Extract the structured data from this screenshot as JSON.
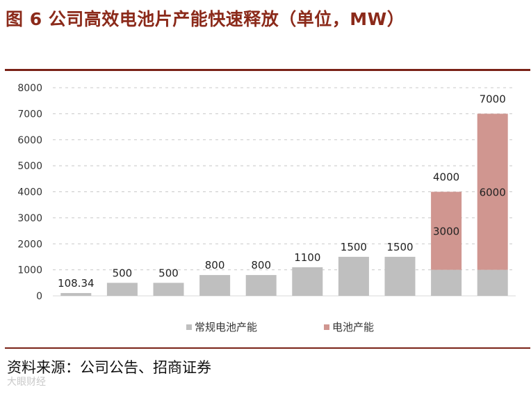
{
  "title": "图 6  公司高效电池片产能快速释放（单位，MW）",
  "source": "资料来源：公司公告、招商证券",
  "watermark": "大眼财经",
  "chart_data": {
    "type": "bar",
    "stacked": true,
    "categories": [
      "",
      "",
      "",
      "",
      "",
      "",
      "",
      "",
      "",
      ""
    ],
    "series": [
      {
        "name": "常规电池产能",
        "color": "#bfbfbf",
        "values": [
          108.34,
          500,
          500,
          800,
          800,
          1100,
          1500,
          1500,
          1000,
          1000
        ],
        "labels": [
          "108.34",
          "500",
          "500",
          "800",
          "800",
          "1100",
          "1500",
          "1500",
          "",
          ""
        ]
      },
      {
        "name": "电池产能",
        "color": "#d09690",
        "values": [
          0,
          0,
          0,
          0,
          0,
          0,
          0,
          0,
          3000,
          6000
        ],
        "labels": [
          "",
          "",
          "",
          "",
          "",
          "",
          "",
          "",
          "3000",
          "6000"
        ]
      }
    ],
    "total_labels": [
      "",
      "",
      "",
      "",
      "",
      "",
      "",
      "",
      "4000",
      "7000"
    ],
    "yticks": [
      "0",
      "1000",
      "2000",
      "3000",
      "4000",
      "5000",
      "6000",
      "7000",
      "8000"
    ],
    "ylim": [
      0,
      8000
    ],
    "grid": true,
    "legend_position": "bottom"
  }
}
